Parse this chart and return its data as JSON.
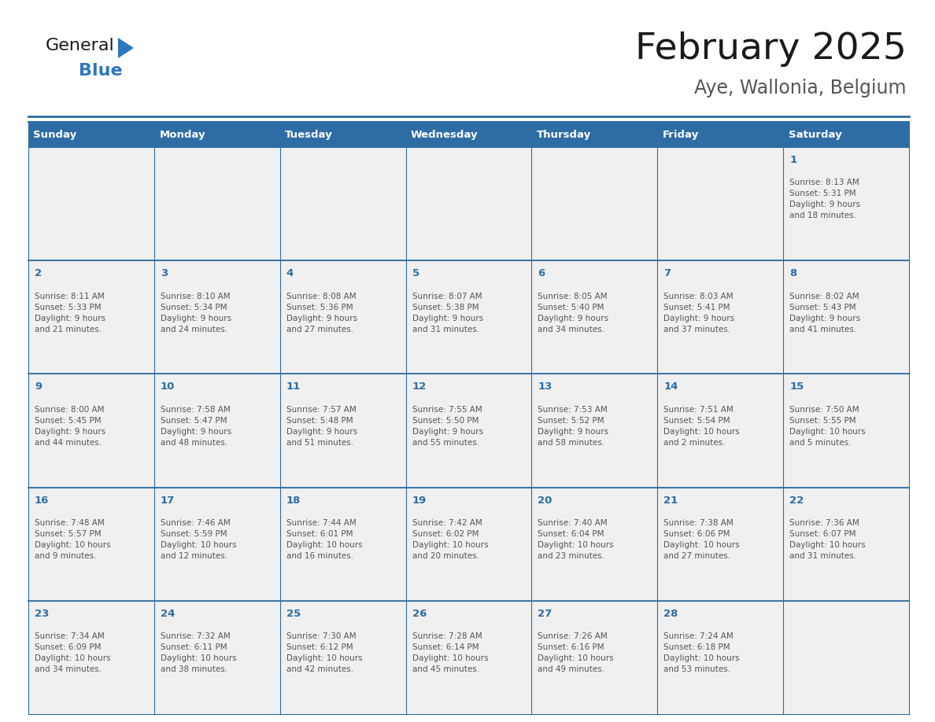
{
  "title": "February 2025",
  "subtitle": "Aye, Wallonia, Belgium",
  "days_of_week": [
    "Sunday",
    "Monday",
    "Tuesday",
    "Wednesday",
    "Thursday",
    "Friday",
    "Saturday"
  ],
  "header_bg": "#2E6DA4",
  "header_text": "#FFFFFF",
  "cell_bg_light": "#F0F0F0",
  "day_number_color": "#2E6DA4",
  "cell_text_color": "#555555",
  "border_color": "#2E6DA4",
  "title_color": "#1a1a1a",
  "subtitle_color": "#555555",
  "logo_general_color": "#1a1a1a",
  "logo_blue_color": "#2E76BD",
  "weeks": [
    [
      {
        "day": null,
        "info": null
      },
      {
        "day": null,
        "info": null
      },
      {
        "day": null,
        "info": null
      },
      {
        "day": null,
        "info": null
      },
      {
        "day": null,
        "info": null
      },
      {
        "day": null,
        "info": null
      },
      {
        "day": 1,
        "info": "Sunrise: 8:13 AM\nSunset: 5:31 PM\nDaylight: 9 hours\nand 18 minutes."
      }
    ],
    [
      {
        "day": 2,
        "info": "Sunrise: 8:11 AM\nSunset: 5:33 PM\nDaylight: 9 hours\nand 21 minutes."
      },
      {
        "day": 3,
        "info": "Sunrise: 8:10 AM\nSunset: 5:34 PM\nDaylight: 9 hours\nand 24 minutes."
      },
      {
        "day": 4,
        "info": "Sunrise: 8:08 AM\nSunset: 5:36 PM\nDaylight: 9 hours\nand 27 minutes."
      },
      {
        "day": 5,
        "info": "Sunrise: 8:07 AM\nSunset: 5:38 PM\nDaylight: 9 hours\nand 31 minutes."
      },
      {
        "day": 6,
        "info": "Sunrise: 8:05 AM\nSunset: 5:40 PM\nDaylight: 9 hours\nand 34 minutes."
      },
      {
        "day": 7,
        "info": "Sunrise: 8:03 AM\nSunset: 5:41 PM\nDaylight: 9 hours\nand 37 minutes."
      },
      {
        "day": 8,
        "info": "Sunrise: 8:02 AM\nSunset: 5:43 PM\nDaylight: 9 hours\nand 41 minutes."
      }
    ],
    [
      {
        "day": 9,
        "info": "Sunrise: 8:00 AM\nSunset: 5:45 PM\nDaylight: 9 hours\nand 44 minutes."
      },
      {
        "day": 10,
        "info": "Sunrise: 7:58 AM\nSunset: 5:47 PM\nDaylight: 9 hours\nand 48 minutes."
      },
      {
        "day": 11,
        "info": "Sunrise: 7:57 AM\nSunset: 5:48 PM\nDaylight: 9 hours\nand 51 minutes."
      },
      {
        "day": 12,
        "info": "Sunrise: 7:55 AM\nSunset: 5:50 PM\nDaylight: 9 hours\nand 55 minutes."
      },
      {
        "day": 13,
        "info": "Sunrise: 7:53 AM\nSunset: 5:52 PM\nDaylight: 9 hours\nand 58 minutes."
      },
      {
        "day": 14,
        "info": "Sunrise: 7:51 AM\nSunset: 5:54 PM\nDaylight: 10 hours\nand 2 minutes."
      },
      {
        "day": 15,
        "info": "Sunrise: 7:50 AM\nSunset: 5:55 PM\nDaylight: 10 hours\nand 5 minutes."
      }
    ],
    [
      {
        "day": 16,
        "info": "Sunrise: 7:48 AM\nSunset: 5:57 PM\nDaylight: 10 hours\nand 9 minutes."
      },
      {
        "day": 17,
        "info": "Sunrise: 7:46 AM\nSunset: 5:59 PM\nDaylight: 10 hours\nand 12 minutes."
      },
      {
        "day": 18,
        "info": "Sunrise: 7:44 AM\nSunset: 6:01 PM\nDaylight: 10 hours\nand 16 minutes."
      },
      {
        "day": 19,
        "info": "Sunrise: 7:42 AM\nSunset: 6:02 PM\nDaylight: 10 hours\nand 20 minutes."
      },
      {
        "day": 20,
        "info": "Sunrise: 7:40 AM\nSunset: 6:04 PM\nDaylight: 10 hours\nand 23 minutes."
      },
      {
        "day": 21,
        "info": "Sunrise: 7:38 AM\nSunset: 6:06 PM\nDaylight: 10 hours\nand 27 minutes."
      },
      {
        "day": 22,
        "info": "Sunrise: 7:36 AM\nSunset: 6:07 PM\nDaylight: 10 hours\nand 31 minutes."
      }
    ],
    [
      {
        "day": 23,
        "info": "Sunrise: 7:34 AM\nSunset: 6:09 PM\nDaylight: 10 hours\nand 34 minutes."
      },
      {
        "day": 24,
        "info": "Sunrise: 7:32 AM\nSunset: 6:11 PM\nDaylight: 10 hours\nand 38 minutes."
      },
      {
        "day": 25,
        "info": "Sunrise: 7:30 AM\nSunset: 6:12 PM\nDaylight: 10 hours\nand 42 minutes."
      },
      {
        "day": 26,
        "info": "Sunrise: 7:28 AM\nSunset: 6:14 PM\nDaylight: 10 hours\nand 45 minutes."
      },
      {
        "day": 27,
        "info": "Sunrise: 7:26 AM\nSunset: 6:16 PM\nDaylight: 10 hours\nand 49 minutes."
      },
      {
        "day": 28,
        "info": "Sunrise: 7:24 AM\nSunset: 6:18 PM\nDaylight: 10 hours\nand 53 minutes."
      },
      {
        "day": null,
        "info": null
      }
    ]
  ]
}
